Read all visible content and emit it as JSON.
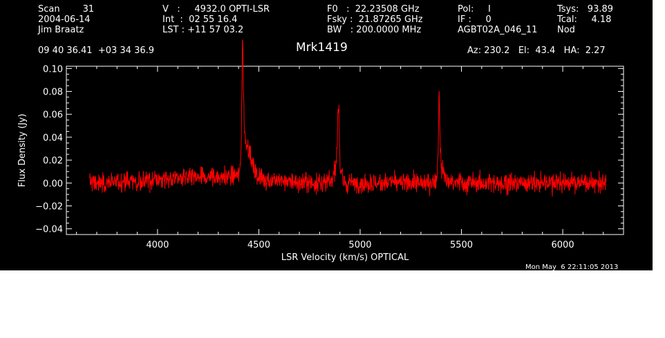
{
  "header": {
    "col1": [
      "Scan        31",
      "2004-06-14",
      "Jim Braatz"
    ],
    "col2": [
      "V   :     4932.0 OPTI-LSR",
      "Int  :  02 55 16.4",
      "LST : +11 57 03.2"
    ],
    "col3": [
      "F0   :  22.23508 GHz",
      "Fsky :  21.87265 GHz",
      "BW   : 200.0000 MHz"
    ],
    "col4": [
      "Pol:     I",
      "IF :     0",
      "AGBT02A_046_11"
    ],
    "col5": [
      "Tsys:   93.89",
      "Tcal:     4.18",
      "Nod"
    ],
    "coords": "09 40 36.41  +03 34 36.9",
    "source": "Mrk1419",
    "azel": "Az: 230.2   El:  43.4   HA:  2.27",
    "timestamp": "Mon May  6 22:11:05 2013"
  },
  "chart_data": {
    "type": "line",
    "xlabel": "LSR Velocity (km/s) OPTICAL",
    "ylabel": "Flux Density (Jy)",
    "xlim": [
      3550,
      6300
    ],
    "ylim": [
      -0.045,
      0.102
    ],
    "xticks": [
      4000,
      4500,
      5000,
      5500,
      6000
    ],
    "xtick_labels": [
      "4000",
      "4500",
      "5000",
      "5500",
      "6000"
    ],
    "yticks": [
      -0.04,
      -0.02,
      0.0,
      0.02,
      0.04,
      0.06,
      0.08,
      0.1
    ],
    "ytick_labels": [
      "−0.04",
      "−0.02",
      "0.00",
      "0.02",
      "0.04",
      "0.06",
      "0.08",
      "0.10"
    ],
    "line_color": "#ff0000",
    "background": "#000000",
    "axis_color": "#ffffff",
    "series": [
      {
        "x_start": 3665,
        "x_end": 6215,
        "noise_rms": 0.006,
        "baseline_slope_points": [
          [
            3665,
            0.0
          ],
          [
            4300,
            0.006
          ],
          [
            4390,
            0.01
          ]
        ],
        "features": [
          {
            "center": 4420,
            "peak": 0.089,
            "shape": "narrow-spike"
          },
          {
            "center": 4425,
            "peak": 0.035,
            "shape": "broad-shoulder-red"
          },
          {
            "center": 4893,
            "peak": 0.061,
            "shape": "narrow-spike"
          },
          {
            "center": 4888,
            "peak": 0.018,
            "shape": "broad-bump"
          },
          {
            "center": 5390,
            "peak": 0.071,
            "shape": "narrow-spike"
          },
          {
            "center": 5400,
            "peak": 0.012,
            "shape": "broad-bump"
          }
        ]
      }
    ]
  }
}
